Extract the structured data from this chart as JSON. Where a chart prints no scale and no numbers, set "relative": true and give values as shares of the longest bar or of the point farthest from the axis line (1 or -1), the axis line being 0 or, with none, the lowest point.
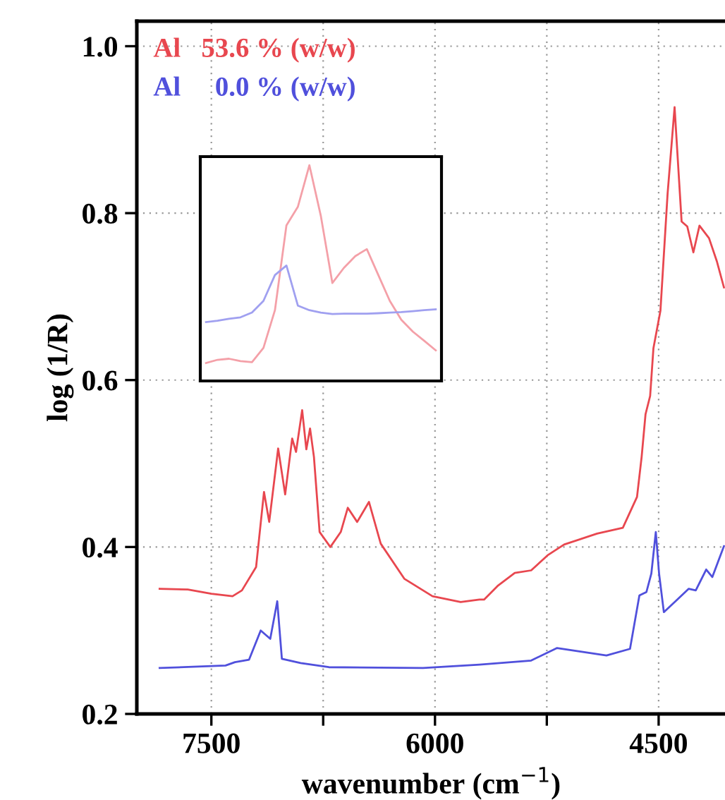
{
  "chart_data": [
    {
      "type": "line",
      "xlabel": "wavenumber (cm$^{−1}$)",
      "ylabel": "log (1/R)",
      "xlim": [
        8000,
        4050
      ],
      "ylim": [
        0.2,
        1.03
      ],
      "xticks": [
        7500,
        {
          "value": 6750,
          "label": null
        },
        6000,
        {
          "value": 5250,
          "label": null
        },
        4500
      ],
      "yticks": [
        0.2,
        0.4,
        0.6,
        0.8,
        {
          "value": 1.0,
          "label": "1.0"
        }
      ],
      "grid": true,
      "legend": "top left",
      "line_style": "solid",
      "series": [
        {
          "name": "Al   53.6 % (w/w)",
          "color": "#e8474f",
          "x": [
            7847,
            7658,
            7500,
            7358,
            7295,
            7200,
            7147,
            7112,
            7052,
            7005,
            6958,
            6932,
            6891,
            6863,
            6838,
            6812,
            6774,
            6702,
            6632,
            6585,
            6522,
            6443,
            6364,
            6206,
            6017,
            5828,
            5702,
            5671,
            5576,
            5465,
            5355,
            5245,
            5134,
            4913,
            4740,
            4645,
            4614,
            4588,
            4557,
            4535,
            4488,
            4440,
            4393,
            4346,
            4308,
            4267,
            4226,
            4162,
            4109,
            4062
          ],
          "values": [
            0.35,
            0.349,
            0.344,
            0.341,
            0.348,
            0.376,
            0.466,
            0.43,
            0.518,
            0.463,
            0.53,
            0.514,
            0.564,
            0.517,
            0.542,
            0.508,
            0.418,
            0.4,
            0.418,
            0.447,
            0.43,
            0.454,
            0.404,
            0.362,
            0.341,
            0.334,
            0.337,
            0.337,
            0.354,
            0.369,
            0.372,
            0.39,
            0.403,
            0.416,
            0.423,
            0.46,
            0.508,
            0.559,
            0.581,
            0.638,
            0.683,
            0.823,
            0.927,
            0.79,
            0.784,
            0.753,
            0.785,
            0.77,
            0.742,
            0.711
          ]
        },
        {
          "name": "Al     0.0 % (w/w)",
          "color": "#5050dc",
          "x": [
            7847,
            7405,
            7342,
            7247,
            7169,
            7105,
            7058,
            7027,
            6901,
            6712,
            6080,
            5702,
            5355,
            5181,
            4850,
            4692,
            4629,
            4582,
            4549,
            4519,
            4497,
            4465,
            4393,
            4298,
            4251,
            4181,
            4140,
            4062
          ],
          "values": [
            0.255,
            0.258,
            0.262,
            0.265,
            0.3,
            0.29,
            0.335,
            0.266,
            0.261,
            0.256,
            0.255,
            0.259,
            0.264,
            0.279,
            0.27,
            0.278,
            0.342,
            0.346,
            0.368,
            0.418,
            0.368,
            0.322,
            0.334,
            0.35,
            0.348,
            0.373,
            0.364,
            0.401
          ]
        }
      ]
    },
    {
      "type": "line",
      "relative": true,
      "line_style": "solid",
      "categories": [
        null,
        null,
        null,
        null,
        null,
        null,
        null,
        null,
        null,
        null,
        null,
        null,
        null,
        null,
        null,
        null,
        null,
        null,
        null,
        null,
        null
      ],
      "series": [
        {
          "color": "#f4a0a8",
          "values": [
            0.083,
            0.098,
            0.103,
            0.092,
            0.087,
            0.153,
            0.328,
            0.721,
            0.808,
            1.0,
            0.764,
            0.454,
            0.524,
            0.579,
            0.611,
            0.491,
            0.371,
            0.284,
            0.229,
            0.186,
            0.142
          ]
        },
        {
          "color": "#a0a0f0",
          "values": [
            0.273,
            0.279,
            0.288,
            0.295,
            0.317,
            0.371,
            0.491,
            0.535,
            0.349,
            0.328,
            0.317,
            0.31,
            0.312,
            0.312,
            0.312,
            0.314,
            0.317,
            0.319,
            0.323,
            0.328,
            0.332
          ]
        }
      ]
    }
  ]
}
